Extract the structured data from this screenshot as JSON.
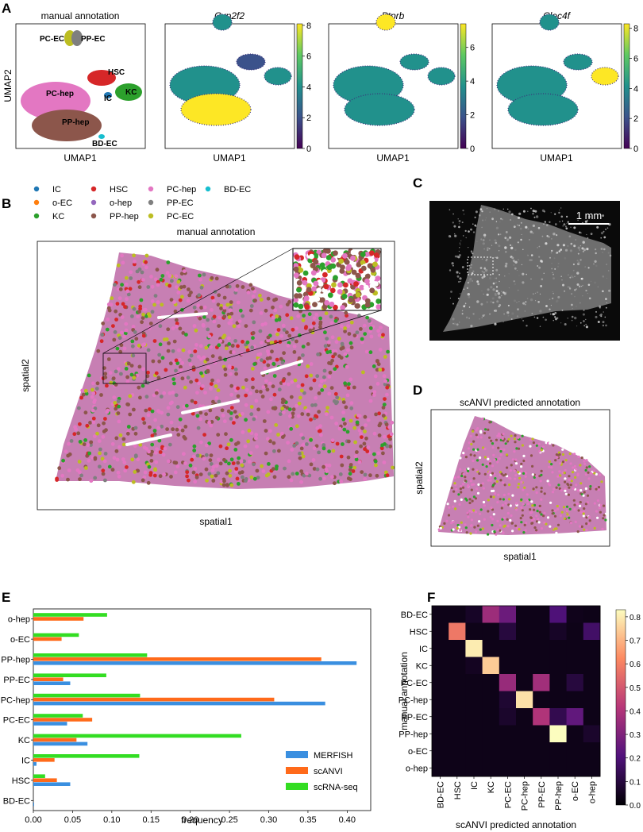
{
  "panel_letters": {
    "a": "A",
    "b": "B",
    "c": "C",
    "d": "D",
    "e": "E",
    "f": "F"
  },
  "umap": {
    "xlabel": "UMAP1",
    "ylabel": "UMAP2",
    "panels": [
      {
        "title": "manual annotation",
        "italic": false,
        "cluster_labels": [
          "PC-EC",
          "PP-EC",
          "HSC",
          "PC-hep",
          "IC",
          "KC",
          "PP-hep",
          "BD-EC"
        ]
      },
      {
        "title": "Cyp2f2",
        "italic": true,
        "colorbar_ticks": [
          "0",
          "2",
          "4",
          "6",
          "8"
        ]
      },
      {
        "title": "Ptprb",
        "italic": true,
        "colorbar_ticks": [
          "0",
          "2",
          "4",
          "6"
        ]
      },
      {
        "title": "Clec4f",
        "italic": true,
        "colorbar_ticks": [
          "0",
          "2",
          "4",
          "6",
          "8"
        ]
      }
    ],
    "colormap": "viridis"
  },
  "legend": {
    "items": [
      {
        "label": "IC",
        "color": "#1f77b4"
      },
      {
        "label": "o-EC",
        "color": "#ff7f0e"
      },
      {
        "label": "KC",
        "color": "#2ca02c"
      },
      {
        "label": "HSC",
        "color": "#d62728"
      },
      {
        "label": "o-hep",
        "color": "#9467bd"
      },
      {
        "label": "PP-hep",
        "color": "#8c564b"
      },
      {
        "label": "PC-hep",
        "color": "#e377c2"
      },
      {
        "label": "PP-EC",
        "color": "#7f7f7f"
      },
      {
        "label": "PC-EC",
        "color": "#bcbd22"
      },
      {
        "label": "BD-EC",
        "color": "#17becf"
      }
    ]
  },
  "spatial_b": {
    "title": "manual annotation",
    "xlabel": "spatial1",
    "ylabel": "spatial2"
  },
  "micrograph_c": {
    "scalebar_label": "1 mm"
  },
  "spatial_d": {
    "title": "scANVI predicted annotation",
    "xlabel": "spatial1",
    "ylabel": "spatial2"
  },
  "chart_data": [
    {
      "type": "bar",
      "orientation": "horizontal",
      "categories": [
        "o-hep",
        "o-EC",
        "PP-hep",
        "PP-EC",
        "PC-hep",
        "PC-EC",
        "KC",
        "IC",
        "HSC",
        "BD-EC"
      ],
      "series": [
        {
          "name": "MERFISH",
          "color": "#3a8fe0",
          "values": [
            0,
            0,
            0.412,
            0.047,
            0.372,
            0.043,
            0.069,
            0.004,
            0.047,
            0.001
          ]
        },
        {
          "name": "scANVI",
          "color": "#ff6a1a",
          "values": [
            0.064,
            0.036,
            0.367,
            0.038,
            0.307,
            0.075,
            0.055,
            0.027,
            0.03,
            0
          ]
        },
        {
          "name": "scRNA-seq",
          "color": "#33dd22",
          "values": [
            0.094,
            0.058,
            0.145,
            0.093,
            0.136,
            0.063,
            0.265,
            0.135,
            0.015,
            0
          ]
        }
      ],
      "xlabel": "frequency",
      "xlim": [
        0,
        0.43
      ],
      "xticks": [
        "0.00",
        "0.05",
        "0.10",
        "0.15",
        "0.20",
        "0.25",
        "0.30",
        "0.35",
        "0.40"
      ],
      "legend_position": "lower-right"
    },
    {
      "type": "heatmap",
      "rows": [
        "BD-EC",
        "HSC",
        "IC",
        "KC",
        "PC-EC",
        "PC-hep",
        "PP-EC",
        "PP-hep",
        "o-EC",
        "o-hep"
      ],
      "cols": [
        "BD-EC",
        "HSC",
        "IC",
        "KC",
        "PC-EC",
        "PC-hep",
        "PP-EC",
        "PP-hep",
        "o-EC",
        "o-hep"
      ],
      "values": [
        [
          0.0,
          0.0,
          0.06,
          0.36,
          0.26,
          0.0,
          0.0,
          0.2,
          0.04,
          0.02
        ],
        [
          0.0,
          0.58,
          0.0,
          0.0,
          0.1,
          0.0,
          0.0,
          0.06,
          0.02,
          0.17
        ],
        [
          0.0,
          0.0,
          0.8,
          0.0,
          0.0,
          0.0,
          0.02,
          0.03,
          0.0,
          0.0
        ],
        [
          0.0,
          0.0,
          0.05,
          0.74,
          0.0,
          0.0,
          0.0,
          0.02,
          0.0,
          0.0
        ],
        [
          0.0,
          0.0,
          0.0,
          0.0,
          0.35,
          0.0,
          0.37,
          0.0,
          0.1,
          0.03
        ],
        [
          0.0,
          0.0,
          0.0,
          0.0,
          0.08,
          0.78,
          0.0,
          0.0,
          0.0,
          0.02
        ],
        [
          0.0,
          0.0,
          0.0,
          0.0,
          0.07,
          0.0,
          0.4,
          0.13,
          0.24,
          0.0
        ],
        [
          0.0,
          0.0,
          0.0,
          0.0,
          0.0,
          0.0,
          0.0,
          0.85,
          0.0,
          0.07
        ],
        [
          0.0,
          0.0,
          0.0,
          0.0,
          0.0,
          0.0,
          0.0,
          0.0,
          0.0,
          0.0
        ],
        [
          0.0,
          0.0,
          0.0,
          0.0,
          0.0,
          0.0,
          0.0,
          0.0,
          0.0,
          0.0
        ]
      ],
      "xlabel": "scANVI predicted annotation",
      "ylabel": "manual annotation",
      "colorbar_ticks": [
        "0.0",
        "0.1",
        "0.2",
        "0.3",
        "0.4",
        "0.5",
        "0.6",
        "0.7",
        "0.8"
      ],
      "vmax": 0.83,
      "colormap": "magma"
    }
  ]
}
